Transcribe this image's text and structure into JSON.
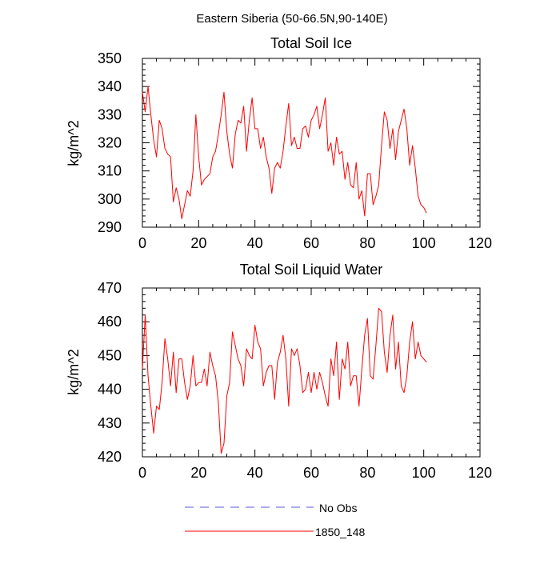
{
  "suptitle": "Eastern Siberia (50-66.5N,90-140E)",
  "colors": {
    "model": "#ff0000",
    "obs": "#5b5bd6",
    "axis": "#000000"
  },
  "legend": [
    {
      "key": "obs",
      "label": "No Obs",
      "style": "dashed",
      "color": "#5b5bd6"
    },
    {
      "key": "model",
      "label": "1850_148",
      "style": "solid",
      "color": "#ff0000"
    }
  ],
  "chart_data": [
    {
      "type": "line",
      "title": "Total Soil Ice",
      "xlabel": "",
      "ylabel": "kg/m^2",
      "xlim": [
        0,
        120
      ],
      "ylim": [
        290,
        350
      ],
      "xticks": [
        0,
        20,
        40,
        60,
        80,
        100,
        120
      ],
      "yticks": [
        290,
        300,
        310,
        320,
        330,
        340,
        350
      ],
      "series": [
        {
          "name": "1850_148",
          "x": [
            0,
            1,
            2,
            3,
            4,
            5,
            6,
            7,
            8,
            9,
            10,
            11,
            12,
            13,
            14,
            15,
            16,
            17,
            18,
            19,
            20,
            21,
            22,
            23,
            24,
            25,
            26,
            27,
            28,
            29,
            30,
            31,
            32,
            33,
            34,
            35,
            36,
            37,
            38,
            39,
            40,
            41,
            42,
            43,
            44,
            45,
            46,
            47,
            48,
            49,
            50,
            51,
            52,
            53,
            54,
            55,
            56,
            57,
            58,
            59,
            60,
            61,
            62,
            63,
            64,
            65,
            66,
            67,
            68,
            69,
            70,
            71,
            72,
            73,
            74,
            75,
            76,
            77,
            78,
            79,
            80,
            81,
            82,
            83,
            84,
            85,
            86,
            87,
            88,
            89,
            90,
            91,
            92,
            93,
            94,
            95,
            96,
            97,
            98,
            99,
            100,
            101
          ],
          "y": [
            338,
            331,
            340,
            330,
            321,
            315,
            328,
            325,
            318,
            316,
            315,
            299,
            304,
            300,
            293,
            298,
            303,
            301,
            310,
            330,
            315,
            305,
            307,
            308,
            309,
            315,
            317,
            323,
            330,
            338,
            324,
            316,
            311,
            323,
            328,
            327,
            333,
            317,
            328,
            336,
            325,
            325,
            318,
            322,
            315,
            311,
            302,
            311,
            313,
            311,
            317,
            326,
            334,
            319,
            322,
            318,
            318,
            325,
            326,
            322,
            328,
            330,
            333,
            325,
            330,
            336,
            317,
            320,
            312,
            322,
            316,
            317,
            307,
            313,
            305,
            304,
            313,
            300,
            303,
            294,
            309,
            309,
            298,
            301,
            305,
            319,
            331,
            328,
            318,
            325,
            314,
            324,
            328,
            332,
            325,
            312,
            319,
            311,
            301,
            298,
            297,
            295
          ]
        }
      ]
    },
    {
      "type": "line",
      "title": "Total Soil Liquid Water",
      "xlabel": "",
      "ylabel": "kg/m^2",
      "xlim": [
        0,
        120
      ],
      "ylim": [
        420,
        470
      ],
      "xticks": [
        0,
        20,
        40,
        60,
        80,
        100,
        120
      ],
      "yticks": [
        420,
        430,
        440,
        450,
        460,
        470
      ],
      "series": [
        {
          "name": "1850_148",
          "x": [
            0,
            1,
            2,
            3,
            4,
            5,
            6,
            7,
            8,
            9,
            10,
            11,
            12,
            13,
            14,
            15,
            16,
            17,
            18,
            19,
            20,
            21,
            22,
            23,
            24,
            25,
            26,
            27,
            28,
            29,
            30,
            31,
            32,
            33,
            34,
            35,
            36,
            37,
            38,
            39,
            40,
            41,
            42,
            43,
            44,
            45,
            46,
            47,
            48,
            49,
            50,
            51,
            52,
            53,
            54,
            55,
            56,
            57,
            58,
            59,
            60,
            61,
            62,
            63,
            64,
            65,
            66,
            67,
            68,
            69,
            70,
            71,
            72,
            73,
            74,
            75,
            76,
            77,
            78,
            79,
            80,
            81,
            82,
            83,
            84,
            85,
            86,
            87,
            88,
            89,
            90,
            91,
            92,
            93,
            94,
            95,
            96,
            97,
            98,
            99,
            100,
            101
          ],
          "y": [
            446,
            462,
            444,
            435,
            427,
            435,
            434,
            442,
            455,
            449,
            441,
            451,
            439,
            449,
            449,
            442,
            437,
            441,
            450,
            441,
            442,
            442,
            446,
            441,
            451,
            447,
            444,
            436,
            421,
            424,
            438,
            442,
            457,
            453,
            449,
            447,
            441,
            452,
            450,
            449,
            459,
            454,
            452,
            441,
            445,
            447,
            447,
            437,
            448,
            451,
            456,
            449,
            435,
            452,
            450,
            452,
            447,
            439,
            440,
            445,
            439,
            445,
            440,
            445,
            442,
            438,
            435,
            449,
            444,
            454,
            437,
            449,
            446,
            454,
            441,
            444,
            444,
            435,
            446,
            456,
            461,
            444,
            443,
            453,
            464,
            463,
            451,
            445,
            456,
            462,
            446,
            454,
            441,
            439,
            444,
            454,
            460,
            449,
            454,
            450,
            449,
            448
          ]
        }
      ]
    }
  ]
}
